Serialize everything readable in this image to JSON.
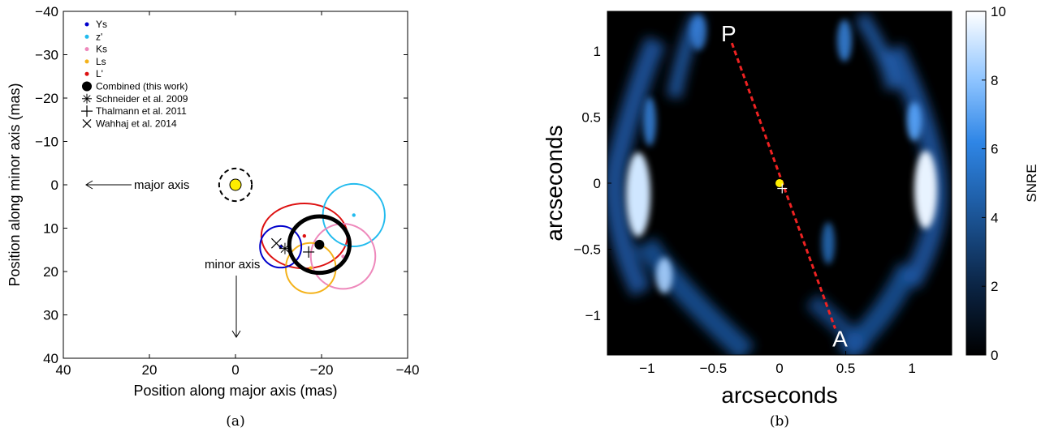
{
  "colors": {
    "ys": "#0000cc",
    "zp": "#22bbee",
    "ks": "#ee88bb",
    "ls": "#f4b21a",
    "lp": "#dd1111",
    "combined": "#000000",
    "star": "#ffee00",
    "track": "#ee2222"
  },
  "panel_a": {
    "caption": "(a)",
    "xlabel": "Position along major axis (mas)",
    "ylabel": "Position along minor axis (mas)",
    "xticks": [
      "40",
      "20",
      "0",
      "−20",
      "−40"
    ],
    "yticks": [
      "−40",
      "−30",
      "−20",
      "−10",
      "0",
      "10",
      "20",
      "30",
      "40"
    ],
    "annotations": {
      "major": "major axis",
      "minor": "minor axis"
    },
    "legend": [
      {
        "label": "Ys",
        "marker": "dot",
        "color": "#0000cc"
      },
      {
        "label": "z'",
        "marker": "dot",
        "color": "#22bbee"
      },
      {
        "label": "Ks",
        "marker": "dot",
        "color": "#ee88bb"
      },
      {
        "label": "Ls",
        "marker": "dot",
        "color": "#f4b21a"
      },
      {
        "label": "L'",
        "marker": "dot",
        "color": "#dd1111"
      },
      {
        "label": "Combined (this work)",
        "marker": "big-dot",
        "color": "#000000"
      },
      {
        "label": "Schneider et al. 2009",
        "marker": "asterisk",
        "color": "#000000"
      },
      {
        "label": "Thalmann et al. 2011",
        "marker": "plus",
        "color": "#000000"
      },
      {
        "label": "Wahhaj et al. 2014",
        "marker": "x",
        "color": "#000000"
      }
    ]
  },
  "panel_b": {
    "caption": "(b)",
    "xlabel": "arcseconds",
    "ylabel": "arcseconds",
    "xticks": [
      "−1",
      "−0.5",
      "0",
      "0.5",
      "1"
    ],
    "yticks": [
      "1",
      "0.5",
      "0",
      "−0.5",
      "−1"
    ],
    "colorbar_label": "SNRE",
    "colorbar_ticks": [
      "0",
      "2",
      "4",
      "6",
      "8",
      "10"
    ],
    "point_labels": {
      "top": "P",
      "bottom": "A"
    }
  },
  "chart_data": [
    {
      "type": "scatter",
      "title": "",
      "xlabel": "Position along major axis (mas)",
      "ylabel": "Position along minor axis (mas)",
      "xlim": [
        40,
        -40
      ],
      "ylim": [
        -40,
        40
      ],
      "y_axis_inverted": true,
      "series": [
        {
          "name": "Ys",
          "center": [
            -10.5,
            14.3
          ],
          "radius": 4.8,
          "color": "#0000cc"
        },
        {
          "name": "z'",
          "center": [
            -27.5,
            7.0
          ],
          "radius": 7.2,
          "color": "#22bbee"
        },
        {
          "name": "Ks",
          "center": [
            -25.0,
            16.5
          ],
          "radius": 7.5,
          "color": "#ee88bb"
        },
        {
          "name": "Ls",
          "center": [
            -17.5,
            19.2
          ],
          "radius": 5.8,
          "color": "#f4b21a"
        },
        {
          "name": "L'",
          "center": [
            -16.0,
            11.8
          ],
          "radius_x": 10.0,
          "radius_y": 7.5,
          "color": "#dd1111"
        },
        {
          "name": "Combined (this work)",
          "center": [
            -19.5,
            13.8
          ],
          "radius_x": 7.0,
          "radius_y": 6.5,
          "color": "#000000"
        },
        {
          "name": "Schneider et al. 2009",
          "x": -11.5,
          "y": 14.7
        },
        {
          "name": "Thalmann et al. 2011",
          "x": -17.0,
          "y": 15.5
        },
        {
          "name": "Wahhaj et al. 2014",
          "x": -9.5,
          "y": 13.5
        }
      ],
      "star": {
        "x": 0,
        "y": 0,
        "halo_radius": 3.8
      }
    },
    {
      "type": "heatmap",
      "title": "",
      "xlabel": "arcseconds",
      "ylabel": "arcseconds",
      "xlim": [
        -1.3,
        1.3
      ],
      "ylim": [
        -1.3,
        1.3
      ],
      "colorbar": {
        "label": "SNRE",
        "range": [
          0,
          10
        ]
      },
      "track": {
        "x": [
          -0.36,
          0.42
        ],
        "y": [
          1.06,
          -1.1
        ],
        "labels": [
          "P",
          "A"
        ]
      },
      "markers": [
        {
          "kind": "dot",
          "x": 0.0,
          "y": 0.0
        },
        {
          "kind": "plus",
          "x": 0.02,
          "y": -0.04
        }
      ]
    }
  ]
}
